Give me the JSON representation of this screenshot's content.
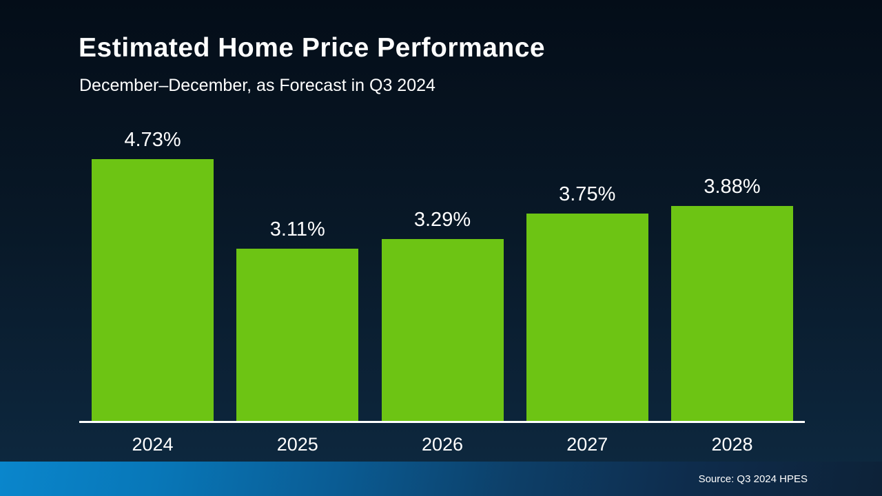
{
  "header": {
    "title": "Estimated Home Price Performance",
    "subtitle": "December–December, as Forecast in Q3 2024"
  },
  "footer": {
    "source": "Source: Q3 2024 HPES"
  },
  "colors": {
    "bar": "#6dc414",
    "axis": "#ffffff",
    "footer_accent": "#0a86cc"
  },
  "chart_data": {
    "type": "bar",
    "title": "Estimated Home Price Performance",
    "subtitle": "December–December, as Forecast in Q3 2024",
    "categories": [
      "2024",
      "2025",
      "2026",
      "2027",
      "2028"
    ],
    "values": [
      4.73,
      3.11,
      3.29,
      3.75,
      3.88
    ],
    "value_labels": [
      "4.73%",
      "3.11%",
      "3.29%",
      "3.75%",
      "3.88%"
    ],
    "xlabel": "",
    "ylabel": "",
    "ylim": [
      0,
      5
    ],
    "grid": false,
    "legend": false,
    "bar_color": "#6dc414",
    "annotation_source": "Source: Q3 2024 HPES"
  }
}
